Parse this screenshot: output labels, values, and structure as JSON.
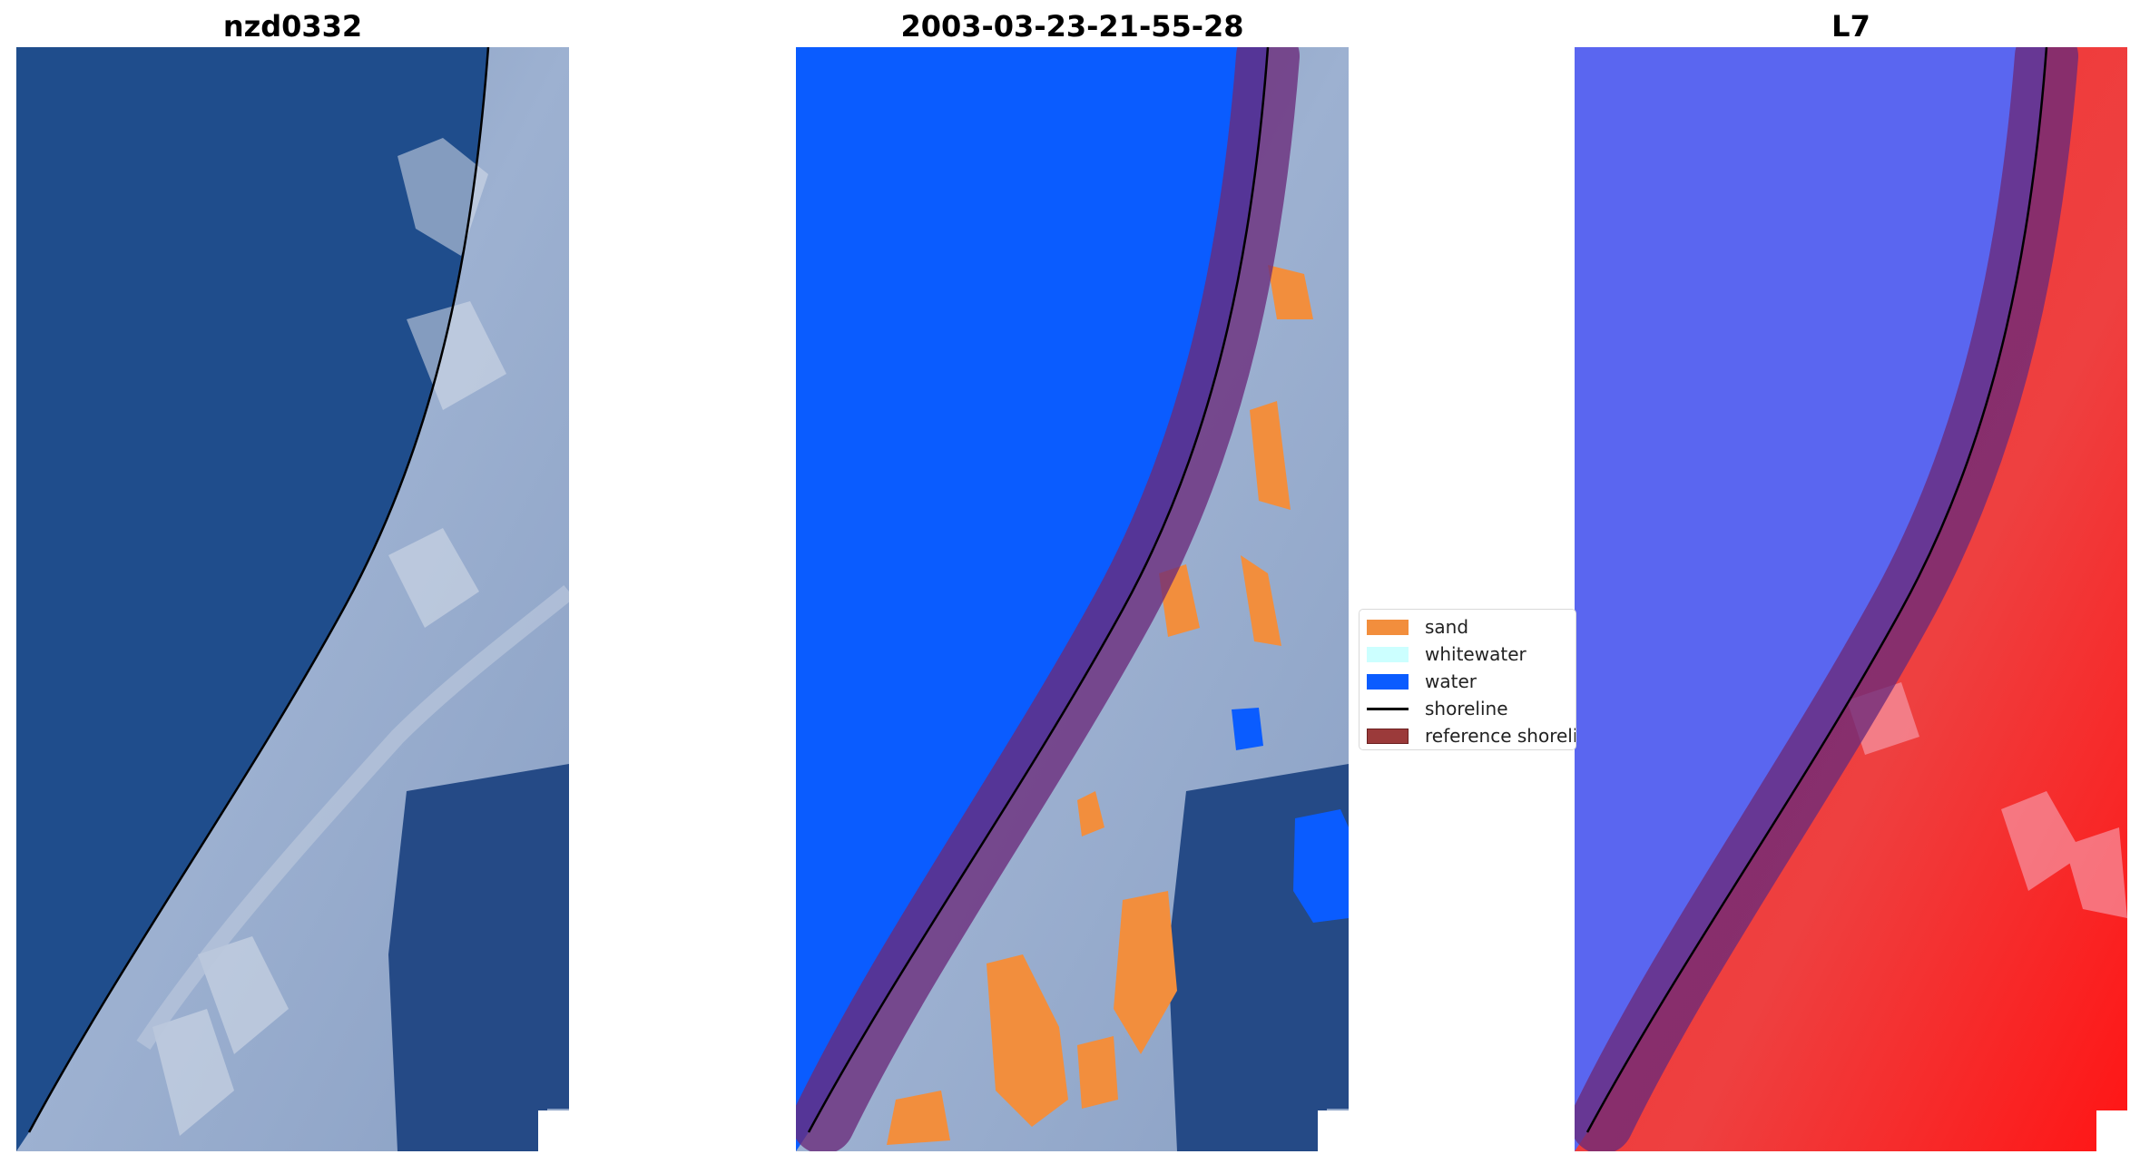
{
  "panels": [
    {
      "id": "rgb",
      "title": "nzd0332"
    },
    {
      "id": "classified",
      "title": "2003-03-23-21-55-28"
    },
    {
      "id": "index",
      "title": "L7"
    }
  ],
  "legend": {
    "items": [
      {
        "label": "sand",
        "kind": "patch",
        "color": "#f28e3d"
      },
      {
        "label": "whitewater",
        "kind": "patch",
        "color": "#ccffff"
      },
      {
        "label": "water",
        "kind": "patch",
        "color": "#0a5cff"
      },
      {
        "label": "shoreline",
        "kind": "line",
        "color": "#000000"
      },
      {
        "label": "reference shoreline",
        "kind": "patch",
        "color": "#9b3a3a"
      }
    ]
  },
  "colors": {
    "sea_rgb": "#1f4d8c",
    "land_rgb": "#8ea6c9",
    "forest_rgb": "#254a86",
    "water_class": "#0a5cff",
    "sand_class": "#f28e3d",
    "buffer_overlay": "#6a2a7a",
    "index_water": "#5a66f0",
    "index_land": "#f02020"
  }
}
